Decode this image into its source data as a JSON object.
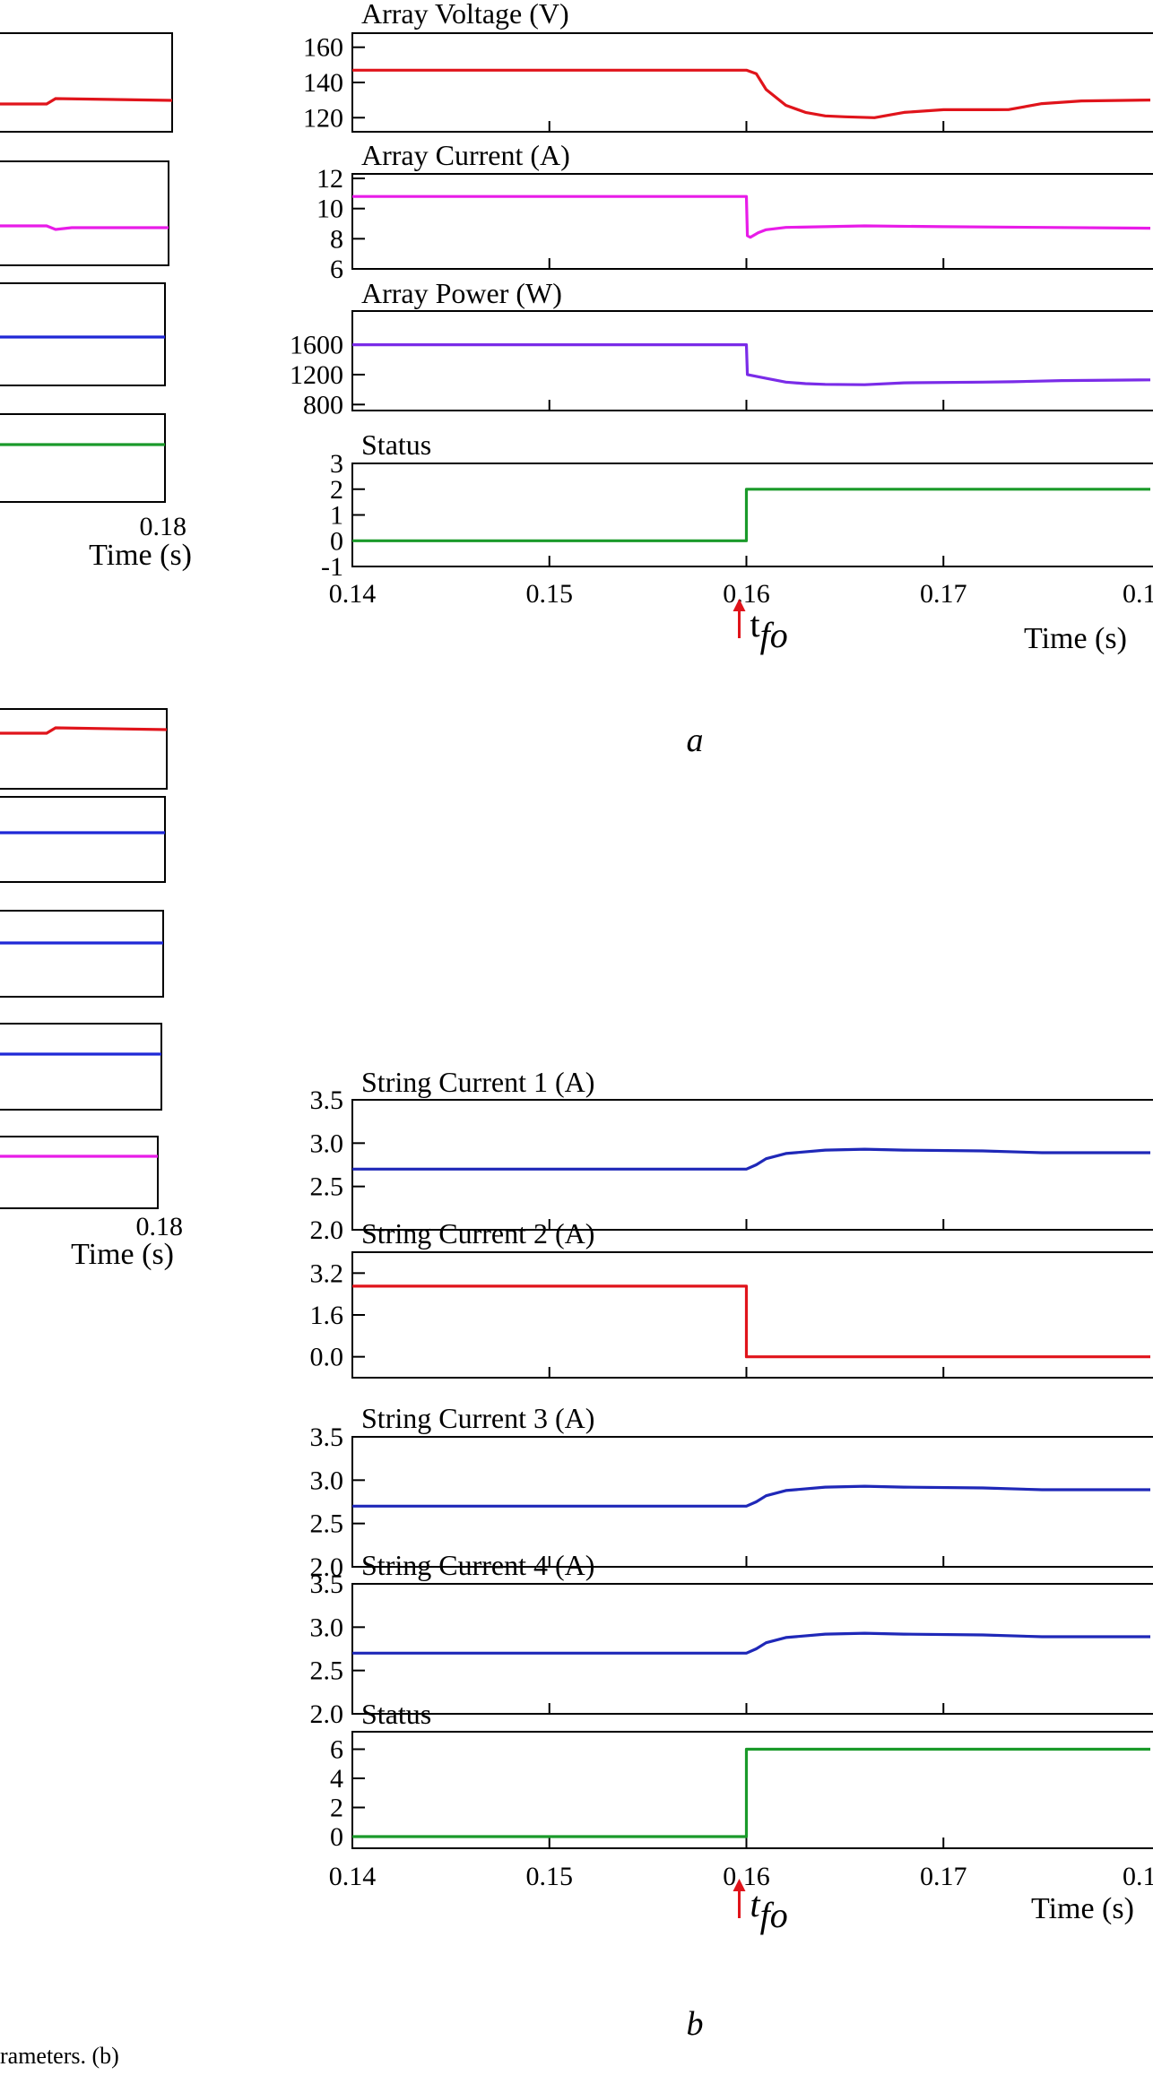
{
  "caption_fragment": "rameters. (b)",
  "left_tick_a": [
    "0.18",
    "Time (s)"
  ],
  "left_tick_b": [
    "0.18",
    "Time (s)"
  ],
  "panels": [
    {
      "label": "a",
      "time_label": "Time (s)",
      "x_ticks": [
        "0.14",
        "0.15",
        "0.16",
        "0.17",
        "0.1"
      ],
      "fault_marker": {
        "base": "t",
        "sub": "fo",
        "x": 0.16
      },
      "left_partial_colors": [
        "#e0141b",
        "#e81ce8",
        "#1f28d6",
        "#1a9a2a"
      ],
      "chart_data": [
        {
          "type": "line",
          "title": "Array Voltage (V)",
          "color": "#e0141b",
          "ylim": [
            112,
            168
          ],
          "yticks": [
            120,
            140,
            160
          ],
          "yticklabels": [
            "120",
            "140",
            "160"
          ],
          "xlim": [
            0.14,
            0.1805
          ],
          "x": [
            0.14,
            0.16,
            0.1605,
            0.161,
            0.162,
            0.163,
            0.164,
            0.165,
            0.1665,
            0.168,
            0.17,
            0.1725,
            0.1733,
            0.175,
            0.177,
            0.1805
          ],
          "y": [
            147,
            147,
            145,
            136,
            127,
            123,
            121,
            120.5,
            120,
            123,
            124.5,
            124.5,
            124.6,
            128,
            129.5,
            130
          ]
        },
        {
          "type": "line",
          "title": "Array Current (A)",
          "color": "#e81ce8",
          "ylim": [
            6,
            12.3
          ],
          "yticks": [
            6,
            8,
            10,
            12
          ],
          "yticklabels": [
            "6",
            "8",
            "10",
            "12"
          ],
          "xlim": [
            0.14,
            0.1805
          ],
          "x": [
            0.14,
            0.16,
            0.16005,
            0.1602,
            0.1606,
            0.161,
            0.162,
            0.164,
            0.166,
            0.17,
            0.175,
            0.1805
          ],
          "y": [
            10.8,
            10.8,
            8.2,
            8.1,
            8.4,
            8.6,
            8.75,
            8.8,
            8.85,
            8.8,
            8.75,
            8.7
          ]
        },
        {
          "type": "line",
          "title": "Array Power (W)",
          "color": "#7a2ce8",
          "ylim": [
            720,
            2050
          ],
          "yticks": [
            800,
            1200,
            1600
          ],
          "yticklabels": [
            "800",
            "1200",
            "1600"
          ],
          "xlim": [
            0.14,
            0.1805
          ],
          "x": [
            0.14,
            0.16,
            0.16005,
            0.161,
            0.162,
            0.163,
            0.164,
            0.166,
            0.168,
            0.172,
            0.1735,
            0.176,
            0.1805
          ],
          "y": [
            1600,
            1600,
            1200,
            1150,
            1100,
            1080,
            1070,
            1065,
            1090,
            1100,
            1105,
            1120,
            1130
          ],
          "gradient": [
            "#7a2ce8",
            "#7a2ce8"
          ]
        },
        {
          "type": "line",
          "title": "Status",
          "color": "#1a9a2a",
          "ylim": [
            -1,
            3
          ],
          "yticks": [
            -1,
            0,
            1,
            2,
            3
          ],
          "yticklabels": [
            "-1",
            "0",
            "1",
            "2",
            "3"
          ],
          "xlim": [
            0.14,
            0.1805
          ],
          "x": [
            0.14,
            0.16,
            0.16,
            0.1805
          ],
          "y": [
            0,
            0,
            2,
            2
          ]
        }
      ]
    },
    {
      "label": "b",
      "time_label": "Time (s)",
      "x_ticks": [
        "0.14",
        "0.15",
        "0.16",
        "0.17",
        "0.1"
      ],
      "fault_marker": {
        "base": "t",
        "sub": "fo",
        "x": 0.16
      },
      "left_partial_colors": [
        "#e0141b",
        "#1f28d6",
        "#1f28d6",
        "#1f28d6",
        "#e81ce8"
      ],
      "chart_data": [
        {
          "type": "line",
          "title": "String Current 1 (A)",
          "color": "#1f28b8",
          "ylim": [
            2,
            3.5
          ],
          "yticks": [
            2.0,
            2.5,
            3.0,
            3.5
          ],
          "yticklabels": [
            "2.0",
            "2.5",
            "3.0",
            "3.5"
          ],
          "xlim": [
            0.14,
            0.1805
          ],
          "x": [
            0.14,
            0.16,
            0.1605,
            0.161,
            0.162,
            0.164,
            0.166,
            0.168,
            0.172,
            0.175,
            0.1805
          ],
          "y": [
            2.7,
            2.7,
            2.75,
            2.82,
            2.88,
            2.92,
            2.93,
            2.92,
            2.91,
            2.89,
            2.89
          ]
        },
        {
          "type": "line",
          "title": "String Current 2 (A)",
          "color": "#e0141b",
          "ylim": [
            -0.8,
            4.0
          ],
          "yticks": [
            0.0,
            1.6,
            3.2
          ],
          "yticklabels": [
            "0.0",
            "1.6",
            "3.2"
          ],
          "xlim": [
            0.14,
            0.1805
          ],
          "x": [
            0.14,
            0.16,
            0.16,
            0.1805
          ],
          "y": [
            2.7,
            2.7,
            0,
            0
          ]
        },
        {
          "type": "line",
          "title": "String Current 3 (A)",
          "color": "#1f28b8",
          "ylim": [
            2,
            3.5
          ],
          "yticks": [
            2.0,
            2.5,
            3.0,
            3.5
          ],
          "yticklabels": [
            "2.0",
            "2.5",
            "3.0",
            "3.5"
          ],
          "xlim": [
            0.14,
            0.1805
          ],
          "x": [
            0.14,
            0.16,
            0.1605,
            0.161,
            0.162,
            0.164,
            0.166,
            0.168,
            0.172,
            0.175,
            0.1805
          ],
          "y": [
            2.7,
            2.7,
            2.75,
            2.82,
            2.88,
            2.92,
            2.93,
            2.92,
            2.91,
            2.89,
            2.89
          ]
        },
        {
          "type": "line",
          "title": "String Current 4 (A)",
          "color": "#1f28b8",
          "ylim": [
            2,
            3.5
          ],
          "yticks": [
            2.0,
            2.5,
            3.0,
            3.5
          ],
          "yticklabels": [
            "2.0",
            "2.5",
            "3.0",
            "3.5"
          ],
          "xlim": [
            0.14,
            0.1805
          ],
          "x": [
            0.14,
            0.16,
            0.1605,
            0.161,
            0.162,
            0.164,
            0.166,
            0.168,
            0.172,
            0.175,
            0.1805
          ],
          "y": [
            2.7,
            2.7,
            2.75,
            2.82,
            2.88,
            2.92,
            2.93,
            2.92,
            2.91,
            2.89,
            2.89
          ]
        },
        {
          "type": "line",
          "title": "Status",
          "color": "#1a9a2a",
          "ylim": [
            -0.8,
            7.2
          ],
          "yticks": [
            0,
            2,
            4,
            6
          ],
          "yticklabels": [
            "0",
            "2",
            "4",
            "6"
          ],
          "xlim": [
            0.14,
            0.1805
          ],
          "x": [
            0.14,
            0.16,
            0.16,
            0.1805
          ],
          "y": [
            0,
            0,
            6,
            6
          ]
        }
      ]
    }
  ]
}
